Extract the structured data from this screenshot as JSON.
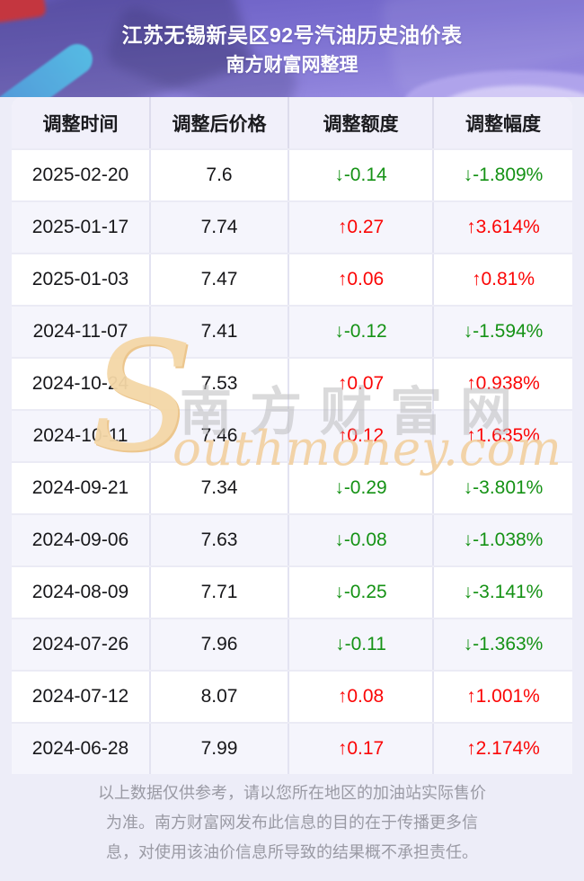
{
  "header": {
    "title": "江苏无锡新吴区92号汽油历史油价表",
    "subtitle": "南方财富网整理"
  },
  "table": {
    "columns": [
      "调整时间",
      "调整后价格",
      "调整额度",
      "调整幅度"
    ],
    "rows": [
      {
        "date": "2025-02-20",
        "price": "7.6",
        "change": "↓-0.14",
        "percent": "↓-1.809%",
        "trend": "down"
      },
      {
        "date": "2025-01-17",
        "price": "7.74",
        "change": "↑0.27",
        "percent": "↑3.614%",
        "trend": "up"
      },
      {
        "date": "2025-01-03",
        "price": "7.47",
        "change": "↑0.06",
        "percent": "↑0.81%",
        "trend": "up"
      },
      {
        "date": "2024-11-07",
        "price": "7.41",
        "change": "↓-0.12",
        "percent": "↓-1.594%",
        "trend": "down"
      },
      {
        "date": "2024-10-24",
        "price": "7.53",
        "change": "↑0.07",
        "percent": "↑0.938%",
        "trend": "up"
      },
      {
        "date": "2024-10-11",
        "price": "7.46",
        "change": "↑0.12",
        "percent": "↑1.635%",
        "trend": "up"
      },
      {
        "date": "2024-09-21",
        "price": "7.34",
        "change": "↓-0.29",
        "percent": "↓-3.801%",
        "trend": "down"
      },
      {
        "date": "2024-09-06",
        "price": "7.63",
        "change": "↓-0.08",
        "percent": "↓-1.038%",
        "trend": "down"
      },
      {
        "date": "2024-08-09",
        "price": "7.71",
        "change": "↓-0.25",
        "percent": "↓-3.141%",
        "trend": "down"
      },
      {
        "date": "2024-07-26",
        "price": "7.96",
        "change": "↓-0.11",
        "percent": "↓-1.363%",
        "trend": "down"
      },
      {
        "date": "2024-07-12",
        "price": "8.07",
        "change": "↑0.08",
        "percent": "↑1.001%",
        "trend": "up"
      },
      {
        "date": "2024-06-28",
        "price": "7.99",
        "change": "↑0.17",
        "percent": "↑2.174%",
        "trend": "up"
      }
    ]
  },
  "watermark": {
    "s": "S",
    "cn": "南方财富网",
    "en": "outhmoney.com"
  },
  "footer": {
    "lines": [
      "以上数据仅供参考，请以您所在地区的加油站实际售价",
      "为准。南方财富网发布此信息的目的在于传播更多信",
      "息，对使用该油价信息所导致的结果概不承担责任。"
    ]
  },
  "colors": {
    "up_red": "#fb0606",
    "down_green": "#159215",
    "header_purple": "#7b6fd0",
    "page_background": "#ededf8",
    "watermark_tan": "#f2cf9d"
  }
}
